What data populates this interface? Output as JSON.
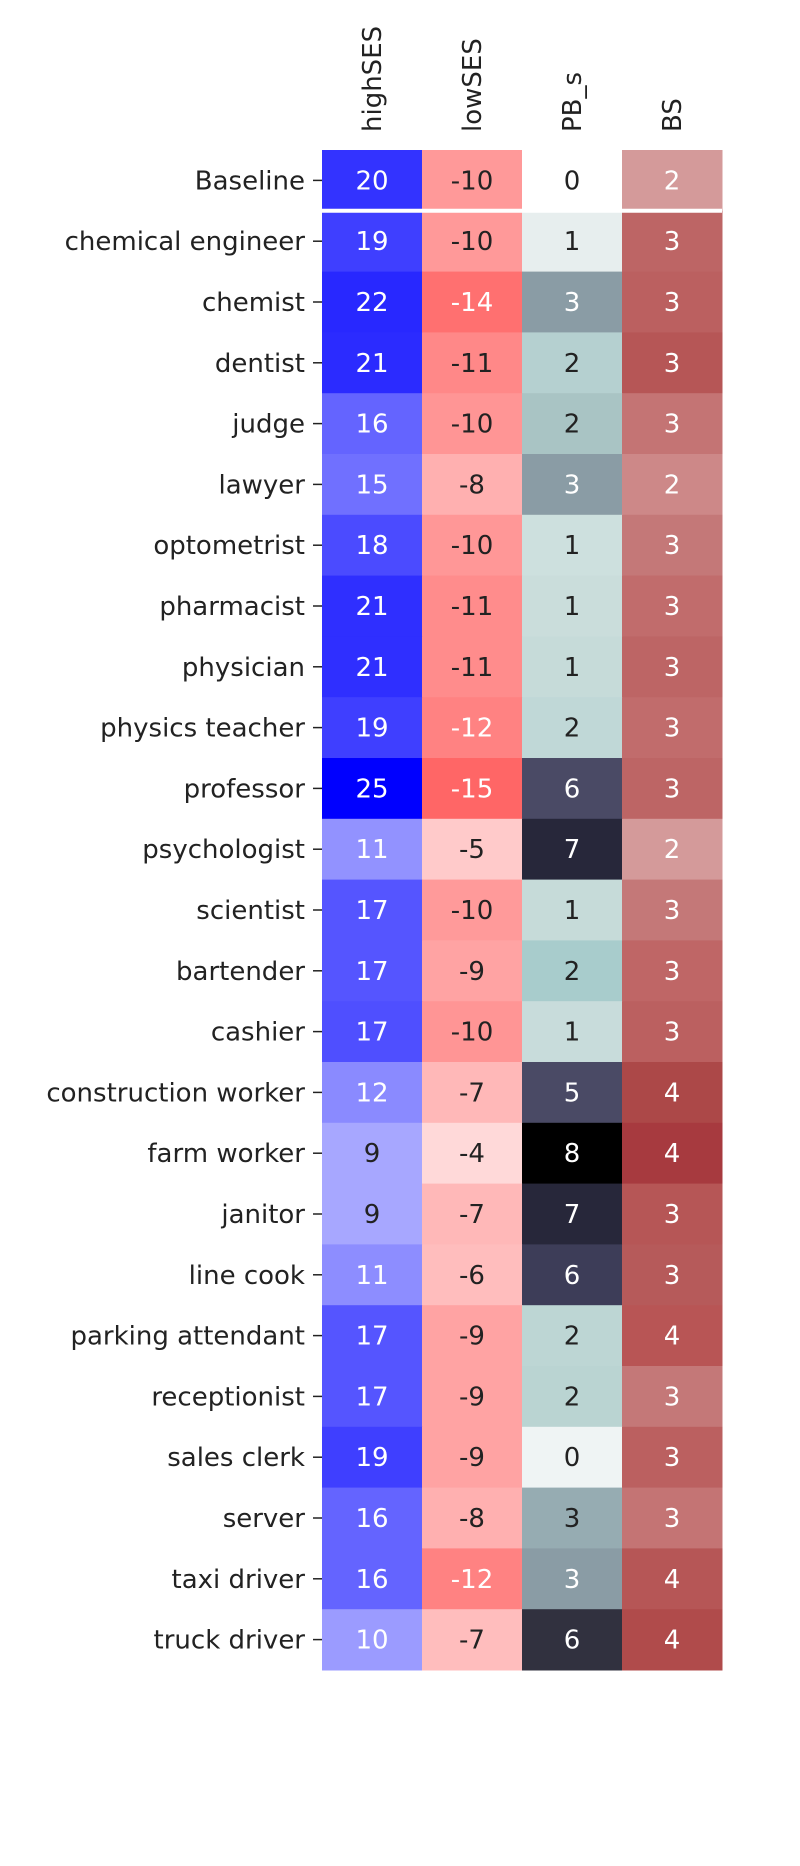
{
  "chart_data": {
    "type": "heatmap",
    "title": "",
    "xlabel": "",
    "ylabel": "",
    "columns": [
      "highSES",
      "lowSES",
      "PB_s",
      "BS"
    ],
    "rows": [
      "Baseline",
      "chemical engineer",
      "chemist",
      "dentist",
      "judge",
      "lawyer",
      "optometrist",
      "pharmacist",
      "physician",
      "physics teacher",
      "professor",
      "psychologist",
      "scientist",
      "bartender",
      "cashier",
      "construction worker",
      "farm worker",
      "janitor",
      "line cook",
      "parking attendant",
      "receptionist",
      "sales clerk",
      "server",
      "taxi driver",
      "truck driver"
    ],
    "values": [
      [
        20,
        -10,
        0,
        2
      ],
      [
        19,
        -10,
        1,
        3
      ],
      [
        22,
        -14,
        3,
        3
      ],
      [
        21,
        -11,
        2,
        3
      ],
      [
        16,
        -10,
        2,
        3
      ],
      [
        15,
        -8,
        3,
        2
      ],
      [
        18,
        -10,
        1,
        3
      ],
      [
        21,
        -11,
        1,
        3
      ],
      [
        21,
        -11,
        1,
        3
      ],
      [
        19,
        -12,
        2,
        3
      ],
      [
        25,
        -15,
        6,
        3
      ],
      [
        11,
        -5,
        7,
        2
      ],
      [
        17,
        -10,
        1,
        3
      ],
      [
        17,
        -9,
        2,
        3
      ],
      [
        17,
        -10,
        1,
        3
      ],
      [
        12,
        -7,
        5,
        4
      ],
      [
        9,
        -4,
        8,
        4
      ],
      [
        9,
        -7,
        7,
        3
      ],
      [
        11,
        -6,
        6,
        3
      ],
      [
        17,
        -9,
        2,
        4
      ],
      [
        17,
        -9,
        2,
        3
      ],
      [
        19,
        -9,
        0,
        3
      ],
      [
        16,
        -8,
        3,
        3
      ],
      [
        16,
        -12,
        3,
        4
      ],
      [
        10,
        -7,
        6,
        4
      ]
    ],
    "cell_colors": [
      [
        "#3333ff",
        "#ff9999",
        "#ffffff",
        "#d49a9a"
      ],
      [
        "#3f3fff",
        "#ff9999",
        "#e7eeee",
        "#bd6565"
      ],
      [
        "#2828ff",
        "#ff7070",
        "#8a9ca5",
        "#bb6060"
      ],
      [
        "#2b2bff",
        "#ff8888",
        "#b5d0d0",
        "#b65656"
      ],
      [
        "#6464ff",
        "#ff9595",
        "#a9c4c4",
        "#c47474"
      ],
      [
        "#7070ff",
        "#ffb0b0",
        "#8a9ca5",
        "#cd8888"
      ],
      [
        "#4b4bff",
        "#ff9797",
        "#cde0de",
        "#c47878"
      ],
      [
        "#2f2fff",
        "#ff8c8c",
        "#cadddb",
        "#c16c6c"
      ],
      [
        "#2f2fff",
        "#ff8c8c",
        "#c6dbd9",
        "#bd6565"
      ],
      [
        "#3f3fff",
        "#ff8282",
        "#c0d8d7",
        "#c16c6c"
      ],
      [
        "#0000ff",
        "#ff6666",
        "#4a4a65",
        "#bd6565"
      ],
      [
        "#9292ff",
        "#ffcaca",
        "#27273a",
        "#d49a9a"
      ],
      [
        "#5555ff",
        "#ff9a9a",
        "#c6dbd9",
        "#c47878"
      ],
      [
        "#5555ff",
        "#ffa3a3",
        "#a8cccc",
        "#bf6666"
      ],
      [
        "#4f4fff",
        "#ff9595",
        "#c8dcdb",
        "#bb6060"
      ],
      [
        "#8a8aff",
        "#ffb8b8",
        "#4a4a65",
        "#ac4848"
      ],
      [
        "#a7a7ff",
        "#ffd9d9",
        "#000000",
        "#a73a3f"
      ],
      [
        "#a7a7ff",
        "#ffb8b8",
        "#27273a",
        "#b65656"
      ],
      [
        "#8d8dff",
        "#ffbdbd",
        "#3d3d58",
        "#b65a5a"
      ],
      [
        "#5555ff",
        "#ffa3a3",
        "#bdd6d4",
        "#b85555"
      ],
      [
        "#5555ff",
        "#ffa3a3",
        "#bad4d2",
        "#c47878"
      ],
      [
        "#3f3fff",
        "#ffa3a3",
        "#eff4f4",
        "#bb6060"
      ],
      [
        "#6464ff",
        "#ffb0b0",
        "#96acb2",
        "#c47474"
      ],
      [
        "#6464ff",
        "#ff8282",
        "#8a9ca5",
        "#b65656"
      ],
      [
        "#9b9bff",
        "#ffbdbd",
        "#31313f",
        "#b04b4b"
      ]
    ],
    "text_colors": [
      [
        "#ffffff",
        "#222222",
        "#222222",
        "#ffffff"
      ],
      [
        "#ffffff",
        "#222222",
        "#222222",
        "#ffffff"
      ],
      [
        "#ffffff",
        "#ffffff",
        "#ffffff",
        "#ffffff"
      ],
      [
        "#ffffff",
        "#222222",
        "#222222",
        "#ffffff"
      ],
      [
        "#ffffff",
        "#222222",
        "#222222",
        "#ffffff"
      ],
      [
        "#ffffff",
        "#222222",
        "#ffffff",
        "#ffffff"
      ],
      [
        "#ffffff",
        "#222222",
        "#222222",
        "#ffffff"
      ],
      [
        "#ffffff",
        "#222222",
        "#222222",
        "#ffffff"
      ],
      [
        "#ffffff",
        "#222222",
        "#222222",
        "#ffffff"
      ],
      [
        "#ffffff",
        "#ffffff",
        "#222222",
        "#ffffff"
      ],
      [
        "#ffffff",
        "#ffffff",
        "#ffffff",
        "#ffffff"
      ],
      [
        "#ffffff",
        "#222222",
        "#ffffff",
        "#ffffff"
      ],
      [
        "#ffffff",
        "#222222",
        "#222222",
        "#ffffff"
      ],
      [
        "#ffffff",
        "#222222",
        "#222222",
        "#ffffff"
      ],
      [
        "#ffffff",
        "#222222",
        "#222222",
        "#ffffff"
      ],
      [
        "#ffffff",
        "#222222",
        "#ffffff",
        "#ffffff"
      ],
      [
        "#222222",
        "#222222",
        "#ffffff",
        "#ffffff"
      ],
      [
        "#222222",
        "#222222",
        "#ffffff",
        "#ffffff"
      ],
      [
        "#ffffff",
        "#222222",
        "#ffffff",
        "#ffffff"
      ],
      [
        "#ffffff",
        "#222222",
        "#222222",
        "#ffffff"
      ],
      [
        "#ffffff",
        "#222222",
        "#222222",
        "#ffffff"
      ],
      [
        "#ffffff",
        "#222222",
        "#222222",
        "#ffffff"
      ],
      [
        "#ffffff",
        "#222222",
        "#222222",
        "#ffffff"
      ],
      [
        "#ffffff",
        "#ffffff",
        "#ffffff",
        "#ffffff"
      ],
      [
        "#ffffff",
        "#222222",
        "#ffffff",
        "#ffffff"
      ]
    ],
    "separator_after_row": "Baseline",
    "colorbar": false,
    "grid": false
  }
}
